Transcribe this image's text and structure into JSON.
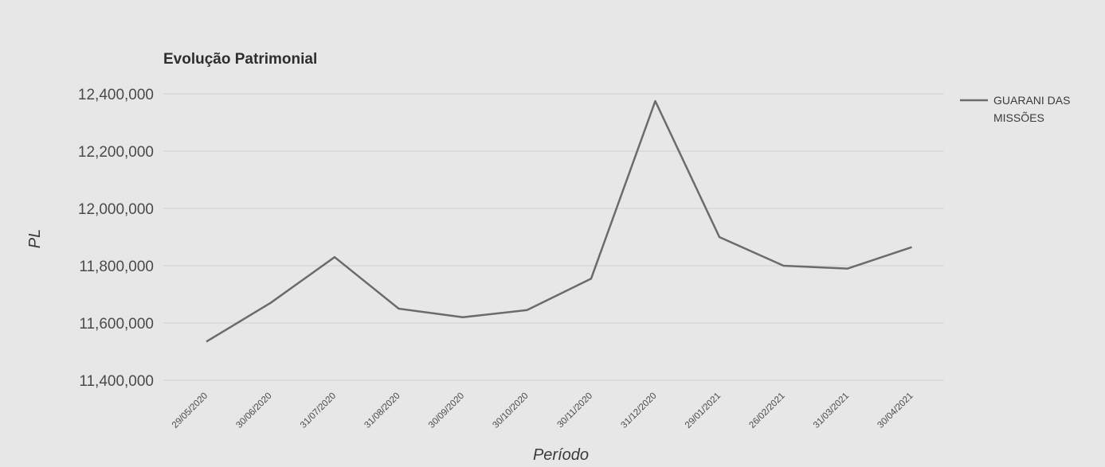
{
  "chart_data": {
    "type": "line",
    "title": "Evolução Patrimonial",
    "xlabel": "Período",
    "ylabel": "PL",
    "categories": [
      "29/05/2020",
      "30/06/2020",
      "31/07/2020",
      "31/08/2020",
      "30/09/2020",
      "30/10/2020",
      "30/11/2020",
      "31/12/2020",
      "29/01/2021",
      "26/02/2021",
      "31/03/2021",
      "30/04/2021"
    ],
    "y_ticks": [
      "11,400,000",
      "11,600,000",
      "11,800,000",
      "12,000,000",
      "12,200,000",
      "12,400,000"
    ],
    "ylim": [
      11400000,
      12400000
    ],
    "grid": true,
    "legend": "right",
    "series": [
      {
        "name": "GUARANI DAS MISSÕES",
        "name_lines": [
          "GUARANI DAS",
          "MISSÕES"
        ],
        "color": "#6b6b6b",
        "values": [
          11535000,
          11670000,
          11830000,
          11650000,
          11620000,
          11645000,
          11755000,
          12375000,
          11900000,
          11800000,
          11790000,
          11865000
        ]
      }
    ]
  }
}
